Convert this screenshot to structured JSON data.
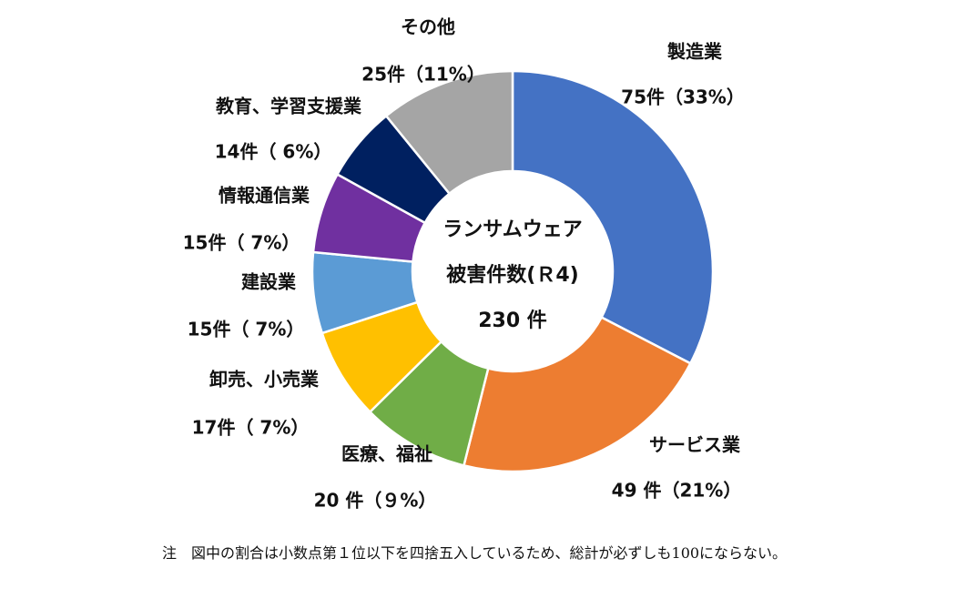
{
  "chart_data": {
    "type": "pie",
    "donut": true,
    "start_angle": "top, clockwise",
    "center_title_line1": "ランサムウェア",
    "center_title_line2": "被害件数(Ｒ4)",
    "center_total": "230 件",
    "slices": [
      {
        "name": "製造業",
        "value": 75,
        "label": "75件（33%）",
        "color": "#4472C4"
      },
      {
        "name": "サービス業",
        "value": 49,
        "label": "49 件（21%）",
        "color": "#ED7D31"
      },
      {
        "name": "医療、福祉",
        "value": 20,
        "label": "20 件（９%）",
        "color": "#70AD47"
      },
      {
        "name": "卸売、小売業",
        "value": 17,
        "label": "17件（ 7%）",
        "color": "#FFC000"
      },
      {
        "name": "建設業",
        "value": 15,
        "label": "15件（ 7%）",
        "color": "#5B9BD5"
      },
      {
        "name": "情報通信業",
        "value": 15,
        "label": "15件（ 7%）",
        "color": "#7030A0"
      },
      {
        "name": "教育、学習支援業",
        "value": 14,
        "label": "14件（ 6%）",
        "color": "#002060"
      },
      {
        "name": "その他",
        "value": 25,
        "label": "25件（11%）",
        "color": "#A5A5A5"
      }
    ]
  },
  "note": "注　図中の割合は小数点第１位以下を四捨五入しているため、総計が必ずしも100にならない。"
}
